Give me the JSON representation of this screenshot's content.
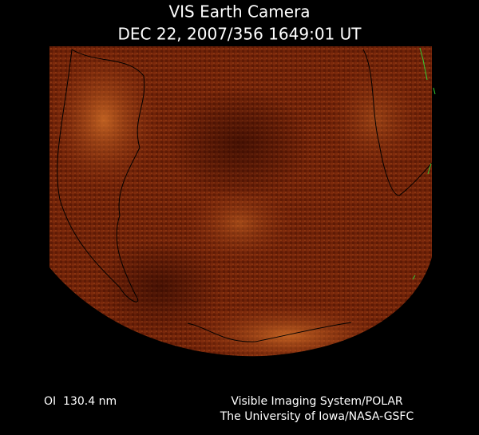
{
  "header": {
    "title": "VIS Earth Camera",
    "timestamp": "DEC 22, 2007/356 1649:01 UT"
  },
  "footer": {
    "filter": "OI  130.4 nm",
    "instrument": "Visible Imaging System/POLAR",
    "institution": "The University of Iowa/NASA-GSFC"
  }
}
